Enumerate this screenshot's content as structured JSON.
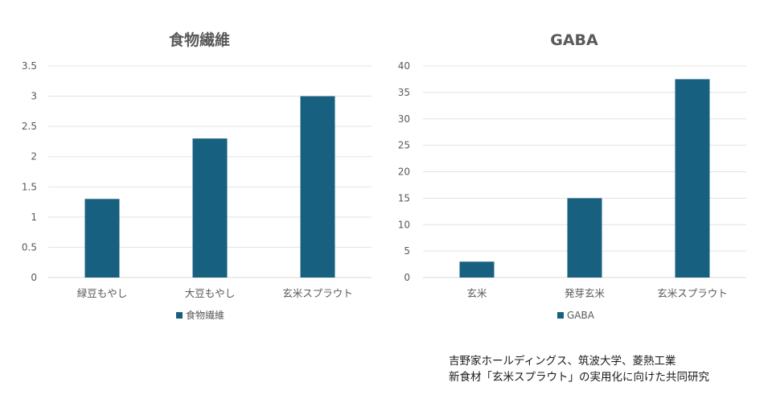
{
  "colors": {
    "bar": "#17607f",
    "text": "#595959",
    "grid": "#e3e3e3"
  },
  "chart_data": [
    {
      "type": "bar",
      "title": "食物繊維",
      "categories": [
        "緑豆もやし",
        "大豆もやし",
        "玄米スプラウト"
      ],
      "series": [
        {
          "name": "食物繊維",
          "values": [
            1.3,
            2.3,
            3.0
          ]
        }
      ],
      "ylim": [
        0,
        3.5
      ],
      "yticks": [
        "0",
        "0.5",
        "1",
        "1.5",
        "2",
        "2.5",
        "3",
        "3.5"
      ],
      "ytick_values": [
        0,
        0.5,
        1,
        1.5,
        2,
        2.5,
        3,
        3.5
      ],
      "legend": "bottom",
      "grid": true
    },
    {
      "type": "bar",
      "title": "GABA",
      "categories": [
        "玄米",
        "発芽玄米",
        "玄米スプラウト"
      ],
      "series": [
        {
          "name": "GABA",
          "values": [
            3,
            15,
            37.5
          ]
        }
      ],
      "ylim": [
        0,
        40
      ],
      "yticks": [
        "0",
        "5",
        "10",
        "15",
        "20",
        "25",
        "30",
        "35",
        "40"
      ],
      "ytick_values": [
        0,
        5,
        10,
        15,
        20,
        25,
        30,
        35,
        40
      ],
      "legend": "bottom",
      "grid": true
    }
  ],
  "source": {
    "line1": "吉野家ホールディングス、筑波大学、菱熱工業",
    "line2": "新食材「玄米スプラウト」の実用化に向けた共同研究"
  }
}
